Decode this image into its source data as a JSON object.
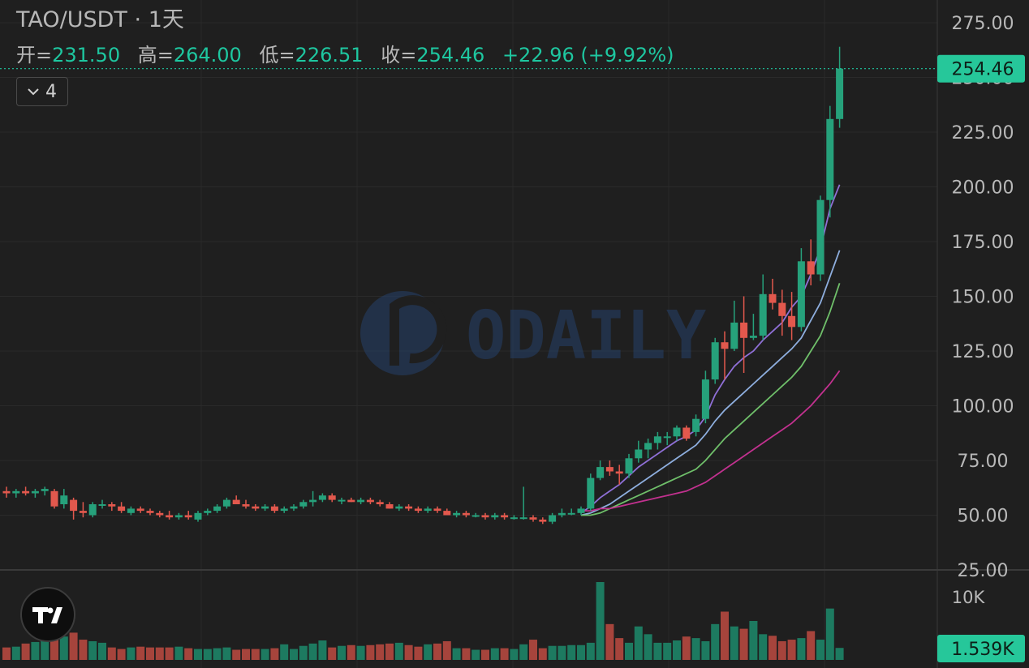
{
  "header": {
    "symbol": "TAO/USDT",
    "separator": "·",
    "interval": "1天",
    "open_label": "开=",
    "open": "231.50",
    "high_label": "高=",
    "high": "264.00",
    "low_label": "低=",
    "low": "226.51",
    "close_label": "收=",
    "close": "254.46",
    "change": "+22.96",
    "change_pct": "(+9.92%)"
  },
  "indicator_toggle": {
    "count": "4"
  },
  "watermark": "ODAILY",
  "price_tag": "254.46",
  "volume_tag": "1.539K",
  "colors": {
    "up": "#26a17b",
    "down": "#e2584d",
    "background": "#1f1f1f",
    "ma_short": "#8f6fd6",
    "ma_mid": "#8eaede",
    "ma_long": "#6fbf6a",
    "ma_slow": "#c2318f"
  },
  "chart_data": {
    "type": "candlestick",
    "price_axis": {
      "ticks": [
        "275.00",
        "250.00",
        "225.00",
        "200.00",
        "175.00",
        "150.00",
        "125.00",
        "100.00",
        "75.00",
        "50.00",
        "25.00"
      ],
      "range": [
        25,
        275
      ]
    },
    "volume_axis": {
      "ticks": [
        "10K"
      ]
    },
    "candles": [
      {
        "o": 61,
        "h": 63,
        "l": 58,
        "c": 60
      },
      {
        "o": 60,
        "h": 62,
        "l": 58,
        "c": 61
      },
      {
        "o": 61,
        "h": 63,
        "l": 59,
        "c": 60
      },
      {
        "o": 60,
        "h": 62,
        "l": 58,
        "c": 61
      },
      {
        "o": 61,
        "h": 63,
        "l": 59,
        "c": 62
      },
      {
        "o": 61,
        "h": 62,
        "l": 53,
        "c": 54
      },
      {
        "o": 55,
        "h": 62,
        "l": 53,
        "c": 59
      },
      {
        "o": 57,
        "h": 58,
        "l": 48,
        "c": 52
      },
      {
        "o": 52,
        "h": 56,
        "l": 49,
        "c": 51
      },
      {
        "o": 50,
        "h": 56,
        "l": 49,
        "c": 55
      },
      {
        "o": 55,
        "h": 57,
        "l": 53,
        "c": 55
      },
      {
        "o": 55,
        "h": 56,
        "l": 52,
        "c": 54
      },
      {
        "o": 54,
        "h": 56,
        "l": 51,
        "c": 52
      },
      {
        "o": 51,
        "h": 54,
        "l": 50,
        "c": 53
      },
      {
        "o": 53,
        "h": 54,
        "l": 51,
        "c": 52
      },
      {
        "o": 52,
        "h": 53,
        "l": 50,
        "c": 51
      },
      {
        "o": 51,
        "h": 52,
        "l": 49,
        "c": 50
      },
      {
        "o": 50,
        "h": 52,
        "l": 48,
        "c": 49
      },
      {
        "o": 49,
        "h": 51,
        "l": 48,
        "c": 50
      },
      {
        "o": 50,
        "h": 52,
        "l": 48,
        "c": 49
      },
      {
        "o": 48,
        "h": 52,
        "l": 47,
        "c": 51
      },
      {
        "o": 51,
        "h": 53,
        "l": 50,
        "c": 52
      },
      {
        "o": 52,
        "h": 55,
        "l": 51,
        "c": 54
      },
      {
        "o": 54,
        "h": 58,
        "l": 53,
        "c": 57
      },
      {
        "o": 57,
        "h": 59,
        "l": 55,
        "c": 55
      },
      {
        "o": 55,
        "h": 57,
        "l": 53,
        "c": 54
      },
      {
        "o": 54,
        "h": 55,
        "l": 52,
        "c": 53
      },
      {
        "o": 53,
        "h": 55,
        "l": 52,
        "c": 54
      },
      {
        "o": 54,
        "h": 55,
        "l": 51,
        "c": 52
      },
      {
        "o": 52,
        "h": 54,
        "l": 51,
        "c": 53
      },
      {
        "o": 53,
        "h": 55,
        "l": 52,
        "c": 54
      },
      {
        "o": 54,
        "h": 57,
        "l": 53,
        "c": 56
      },
      {
        "o": 56,
        "h": 61,
        "l": 54,
        "c": 57
      },
      {
        "o": 57,
        "h": 60,
        "l": 56,
        "c": 59
      },
      {
        "o": 59,
        "h": 60,
        "l": 56,
        "c": 57
      },
      {
        "o": 57,
        "h": 58,
        "l": 55,
        "c": 57
      },
      {
        "o": 57,
        "h": 58,
        "l": 56,
        "c": 56
      },
      {
        "o": 56,
        "h": 58,
        "l": 55,
        "c": 57
      },
      {
        "o": 57,
        "h": 58,
        "l": 55,
        "c": 56
      },
      {
        "o": 56,
        "h": 57,
        "l": 54,
        "c": 55
      },
      {
        "o": 55,
        "h": 56,
        "l": 53,
        "c": 53
      },
      {
        "o": 53,
        "h": 55,
        "l": 52,
        "c": 54
      },
      {
        "o": 54,
        "h": 55,
        "l": 52,
        "c": 53
      },
      {
        "o": 53,
        "h": 54,
        "l": 51,
        "c": 52
      },
      {
        "o": 52,
        "h": 54,
        "l": 51,
        "c": 53
      },
      {
        "o": 53,
        "h": 54,
        "l": 51,
        "c": 52
      },
      {
        "o": 52,
        "h": 53,
        "l": 50,
        "c": 50
      },
      {
        "o": 50,
        "h": 52,
        "l": 49,
        "c": 51
      },
      {
        "o": 51,
        "h": 52,
        "l": 49,
        "c": 50
      },
      {
        "o": 50,
        "h": 51,
        "l": 49,
        "c": 50
      },
      {
        "o": 50,
        "h": 51,
        "l": 48,
        "c": 49
      },
      {
        "o": 49,
        "h": 51,
        "l": 48,
        "c": 50
      },
      {
        "o": 50,
        "h": 51,
        "l": 48,
        "c": 49
      },
      {
        "o": 49,
        "h": 50,
        "l": 48,
        "c": 49
      },
      {
        "o": 49,
        "h": 63,
        "l": 48,
        "c": 49
      },
      {
        "o": 49,
        "h": 50,
        "l": 47,
        "c": 48
      },
      {
        "o": 48,
        "h": 49,
        "l": 46,
        "c": 47
      },
      {
        "o": 47,
        "h": 51,
        "l": 46,
        "c": 50
      },
      {
        "o": 50,
        "h": 53,
        "l": 49,
        "c": 51
      },
      {
        "o": 51,
        "h": 53,
        "l": 50,
        "c": 51
      },
      {
        "o": 51,
        "h": 54,
        "l": 50,
        "c": 53
      },
      {
        "o": 53,
        "h": 69,
        "l": 52,
        "c": 67
      },
      {
        "o": 67,
        "h": 75,
        "l": 66,
        "c": 72
      },
      {
        "o": 72,
        "h": 75,
        "l": 68,
        "c": 70
      },
      {
        "o": 70,
        "h": 73,
        "l": 64,
        "c": 69
      },
      {
        "o": 69,
        "h": 78,
        "l": 67,
        "c": 76
      },
      {
        "o": 76,
        "h": 84,
        "l": 74,
        "c": 80
      },
      {
        "o": 80,
        "h": 85,
        "l": 76,
        "c": 83
      },
      {
        "o": 83,
        "h": 88,
        "l": 80,
        "c": 86
      },
      {
        "o": 86,
        "h": 88,
        "l": 82,
        "c": 86
      },
      {
        "o": 86,
        "h": 91,
        "l": 84,
        "c": 90
      },
      {
        "o": 90,
        "h": 91,
        "l": 84,
        "c": 85
      },
      {
        "o": 88,
        "h": 96,
        "l": 86,
        "c": 94
      },
      {
        "o": 94,
        "h": 116,
        "l": 92,
        "c": 112
      },
      {
        "o": 112,
        "h": 131,
        "l": 110,
        "c": 129
      },
      {
        "o": 129,
        "h": 134,
        "l": 112,
        "c": 126
      },
      {
        "o": 126,
        "h": 148,
        "l": 125,
        "c": 138
      },
      {
        "o": 138,
        "h": 150,
        "l": 115,
        "c": 131
      },
      {
        "o": 131,
        "h": 142,
        "l": 130,
        "c": 132
      },
      {
        "o": 132,
        "h": 160,
        "l": 130,
        "c": 151
      },
      {
        "o": 151,
        "h": 158,
        "l": 144,
        "c": 147
      },
      {
        "o": 147,
        "h": 153,
        "l": 132,
        "c": 141
      },
      {
        "o": 141,
        "h": 152,
        "l": 130,
        "c": 136
      },
      {
        "o": 136,
        "h": 172,
        "l": 134,
        "c": 166
      },
      {
        "o": 166,
        "h": 176,
        "l": 155,
        "c": 160
      },
      {
        "o": 160,
        "h": 196,
        "l": 157,
        "c": 194
      },
      {
        "o": 194,
        "h": 237,
        "l": 186,
        "c": 231
      },
      {
        "o": 231,
        "h": 264,
        "l": 227,
        "c": 254
      }
    ],
    "volumes_k": [
      1.6,
      1.7,
      2.1,
      2.3,
      2.9,
      3.0,
      3.0,
      3.5,
      2.6,
      2.4,
      2.2,
      1.6,
      1.4,
      1.6,
      1.7,
      1.6,
      1.6,
      1.6,
      1.7,
      1.5,
      1.4,
      1.4,
      1.5,
      1.6,
      1.3,
      1.4,
      1.4,
      1.4,
      1.5,
      2.0,
      1.4,
      1.8,
      2.1,
      2.5,
      1.6,
      1.8,
      1.9,
      1.8,
      1.9,
      2.0,
      2.1,
      2.2,
      1.9,
      1.7,
      2.0,
      2.1,
      2.4,
      1.5,
      1.5,
      1.3,
      1.3,
      1.5,
      1.5,
      1.4,
      2.0,
      2.6,
      1.5,
      1.8,
      1.8,
      1.9,
      1.9,
      2.2,
      10.0,
      4.6,
      2.8,
      2.2,
      4.3,
      3.3,
      2.2,
      2.2,
      2.5,
      3.0,
      2.8,
      2.4,
      4.6,
      6.2,
      4.3,
      4.0,
      5.0,
      3.3,
      3.1,
      2.4,
      2.6,
      2.8,
      3.7,
      2.6,
      6.6,
      1.539
    ],
    "moving_averages": [
      {
        "values": [
          null,
          null,
          null,
          null,
          null,
          null,
          null,
          null,
          null,
          null,
          null,
          null,
          null,
          null,
          null,
          null,
          null,
          null,
          null,
          null,
          null,
          null,
          null,
          null,
          null,
          null,
          null,
          null,
          null,
          null,
          null,
          null,
          null,
          null,
          null,
          null,
          null,
          null,
          null,
          null,
          null,
          null,
          null,
          null,
          null,
          null,
          null,
          null,
          null,
          null,
          null,
          null,
          null,
          null,
          null,
          null,
          null,
          null,
          null,
          null,
          51,
          54,
          58,
          61,
          64,
          68,
          72,
          75,
          78,
          81,
          84,
          86,
          89,
          95,
          105,
          112,
          118,
          122,
          125,
          130,
          134,
          138,
          145,
          150,
          160,
          172,
          190,
          201
        ]
      },
      {
        "values": [
          null,
          null,
          null,
          null,
          null,
          null,
          null,
          null,
          null,
          null,
          null,
          null,
          null,
          null,
          null,
          null,
          null,
          null,
          null,
          null,
          null,
          null,
          null,
          null,
          null,
          null,
          null,
          null,
          null,
          null,
          null,
          null,
          null,
          null,
          null,
          null,
          null,
          null,
          null,
          null,
          null,
          null,
          null,
          null,
          null,
          null,
          null,
          null,
          null,
          null,
          null,
          null,
          null,
          null,
          null,
          null,
          null,
          null,
          null,
          null,
          50,
          51,
          53,
          55,
          58,
          61,
          64,
          67,
          70,
          73,
          76,
          79,
          82,
          87,
          93,
          98,
          102,
          106,
          110,
          114,
          118,
          122,
          126,
          131,
          139,
          147,
          159,
          171
        ]
      },
      {
        "values": [
          null,
          null,
          null,
          null,
          null,
          null,
          null,
          null,
          null,
          null,
          null,
          null,
          null,
          null,
          null,
          null,
          null,
          null,
          null,
          null,
          null,
          null,
          null,
          null,
          null,
          null,
          null,
          null,
          null,
          null,
          null,
          null,
          null,
          null,
          null,
          null,
          null,
          null,
          null,
          null,
          null,
          null,
          null,
          null,
          null,
          null,
          null,
          null,
          null,
          null,
          null,
          null,
          null,
          null,
          null,
          null,
          null,
          null,
          null,
          null,
          50,
          50,
          51,
          53,
          55,
          57,
          59,
          61,
          63,
          65,
          67,
          69,
          71,
          75,
          80,
          85,
          89,
          93,
          97,
          101,
          105,
          109,
          113,
          118,
          125,
          132,
          143,
          156
        ]
      },
      {
        "values": [
          null,
          null,
          null,
          null,
          null,
          null,
          null,
          null,
          null,
          null,
          null,
          null,
          null,
          null,
          null,
          null,
          null,
          null,
          null,
          null,
          null,
          null,
          null,
          null,
          null,
          null,
          null,
          null,
          null,
          null,
          null,
          null,
          null,
          null,
          null,
          null,
          null,
          null,
          null,
          null,
          null,
          null,
          null,
          null,
          null,
          null,
          null,
          null,
          null,
          null,
          null,
          null,
          null,
          null,
          null,
          null,
          null,
          null,
          null,
          null,
          52,
          52,
          53,
          53,
          54,
          55,
          56,
          57,
          58,
          59,
          60,
          61,
          63,
          65,
          68,
          71,
          74,
          77,
          80,
          83,
          86,
          89,
          92,
          96,
          100,
          105,
          110,
          116
        ]
      }
    ]
  }
}
